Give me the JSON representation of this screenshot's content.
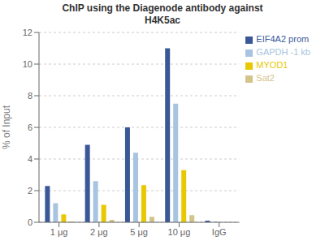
{
  "chart_data": {
    "type": "bar",
    "title": "ChIP using the Diagenode antibody against\nH4K5ac",
    "y_label": "% of Input",
    "categories": [
      "1 μg",
      "2 μg",
      "5 μg",
      "10 μg",
      "IgG"
    ],
    "series": [
      {
        "name": "EIF4A2 prom",
        "color": "#3A5898",
        "values": [
          2.3,
          4.9,
          6.0,
          11.0,
          0.1
        ]
      },
      {
        "name": "GAPDH -1 kb",
        "color": "#A8C4E0",
        "values": [
          1.2,
          2.6,
          4.4,
          7.5,
          0.05
        ]
      },
      {
        "name": "MYOD1",
        "color": "#E8C800",
        "values": [
          0.5,
          1.1,
          2.35,
          3.3,
          0.0
        ]
      },
      {
        "name": "Sat2",
        "color": "#D4C48A",
        "values": [
          0.05,
          0.15,
          0.35,
          0.45,
          0.0
        ]
      }
    ],
    "ylim": [
      0,
      12
    ],
    "yticks": [
      0,
      2,
      4,
      6,
      8,
      10,
      12
    ],
    "grid": true,
    "legend": "upper right"
  }
}
